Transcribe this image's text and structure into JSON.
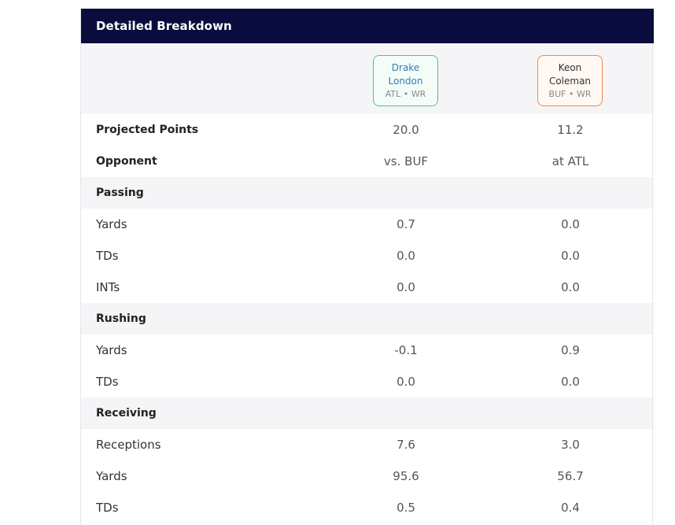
{
  "header": {
    "title": "Detailed Breakdown"
  },
  "players": [
    {
      "first": "Drake",
      "last": "London",
      "meta": "ATL • WR",
      "accent": "#4cc38a"
    },
    {
      "first": "Keon",
      "last": "Coleman",
      "meta": "BUF • WR",
      "accent": "#f08a4b"
    }
  ],
  "summary": {
    "projected_points": {
      "label": "Projected Points",
      "p1": "20.0",
      "p2": "11.2"
    },
    "opponent": {
      "label": "Opponent",
      "p1": "vs. BUF",
      "p2": "at ATL"
    }
  },
  "passing": {
    "title": "Passing",
    "yards": {
      "label": "Yards",
      "p1": "0.7",
      "p2": "0.0"
    },
    "tds": {
      "label": "TDs",
      "p1": "0.0",
      "p2": "0.0"
    },
    "ints": {
      "label": "INTs",
      "p1": "0.0",
      "p2": "0.0"
    }
  },
  "rushing": {
    "title": "Rushing",
    "yards": {
      "label": "Yards",
      "p1": "-0.1",
      "p2": "0.9"
    },
    "tds": {
      "label": "TDs",
      "p1": "0.0",
      "p2": "0.0"
    }
  },
  "receiving": {
    "title": "Receiving",
    "receptions": {
      "label": "Receptions",
      "p1": "7.6",
      "p2": "3.0"
    },
    "yards": {
      "label": "Yards",
      "p1": "95.6",
      "p2": "56.7"
    },
    "tds": {
      "label": "TDs",
      "p1": "0.5",
      "p2": "0.4"
    }
  }
}
